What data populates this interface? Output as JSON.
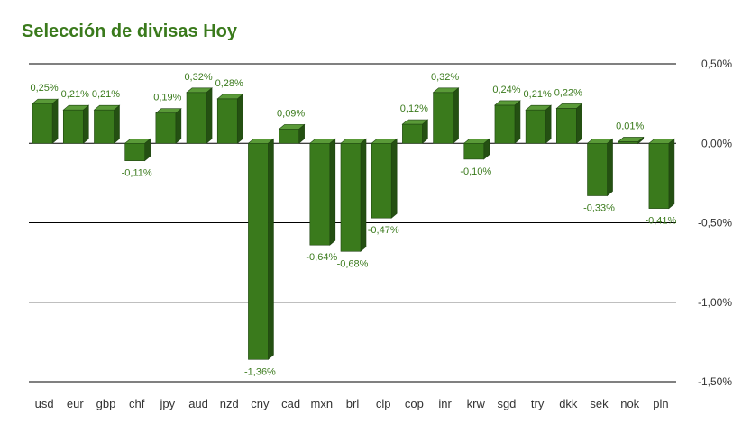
{
  "chart_data": {
    "type": "bar",
    "title": "Selección de divisas Hoy",
    "xlabel": "",
    "ylabel": "",
    "ylim": [
      -1.5,
      0.5
    ],
    "yticks": [
      0.5,
      0,
      -0.5,
      -1.0,
      -1.5
    ],
    "ytick_labels": [
      "0,50%",
      "0,00%",
      "-0,50%",
      "-1,00%",
      "-1,50%"
    ],
    "categories": [
      "usd",
      "eur",
      "gbp",
      "chf",
      "jpy",
      "aud",
      "nzd",
      "cny",
      "cad",
      "mxn",
      "brl",
      "clp",
      "cop",
      "inr",
      "krw",
      "sgd",
      "try",
      "dkk",
      "sek",
      "nok",
      "pln"
    ],
    "values": [
      0.25,
      0.21,
      0.21,
      -0.11,
      0.19,
      0.32,
      0.28,
      -1.36,
      0.09,
      -0.64,
      -0.68,
      -0.47,
      0.12,
      0.32,
      -0.1,
      0.24,
      0.21,
      0.22,
      -0.33,
      0.01,
      -0.41
    ],
    "value_labels": [
      "0,25%",
      "0,21%",
      "0,21%",
      "-0,11%",
      "0,19%",
      "0,32%",
      "0,28%",
      "-1,36%",
      "0,09%",
      "-0,64%",
      "-0,68%",
      "-0,47%",
      "0,12%",
      "0,32%",
      "-0,10%",
      "0,24%",
      "0,21%",
      "0,22%",
      "-0,33%",
      "0,01%",
      "-0,41%"
    ],
    "colors": {
      "bar_front": "#3a7a1c",
      "bar_top": "#5a9a38",
      "bar_side": "#245012",
      "bar_edge": "#1e4410",
      "label": "#3a7a1c",
      "axis_text": "#333333",
      "grid": "#000000"
    }
  }
}
